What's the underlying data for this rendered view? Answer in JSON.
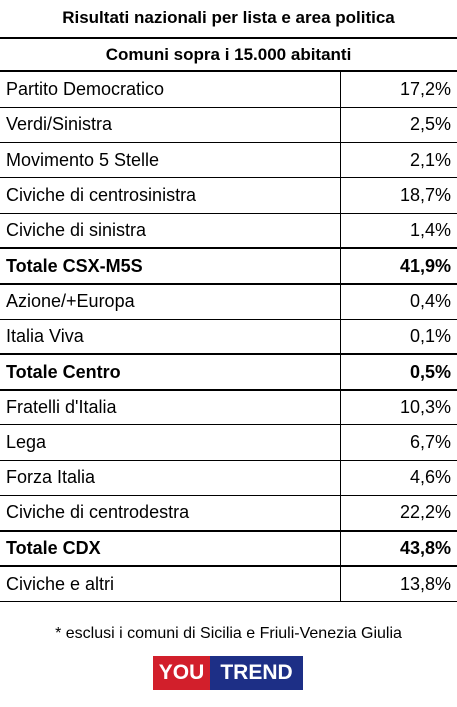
{
  "title": "Risultati nazionali per lista e area politica",
  "subtitle": "Comuni sopra i 15.000 abitanti",
  "chart_data": {
    "type": "table",
    "title": "Risultati nazionali per lista e area politica",
    "subtitle": "Comuni sopra i 15.000 abitanti",
    "rows": [
      {
        "label": "Partito Democratico",
        "value": "17,2%",
        "total": false
      },
      {
        "label": "Verdi/Sinistra",
        "value": "2,5%",
        "total": false
      },
      {
        "label": "Movimento 5 Stelle",
        "value": "2,1%",
        "total": false
      },
      {
        "label": "Civiche di centrosinistra",
        "value": "18,7%",
        "total": false
      },
      {
        "label": "Civiche di sinistra",
        "value": "1,4%",
        "total": false
      },
      {
        "label": "Totale CSX-M5S",
        "value": "41,9%",
        "total": true
      },
      {
        "label": "Azione/+Europa",
        "value": "0,4%",
        "total": false
      },
      {
        "label": "Italia Viva",
        "value": "0,1%",
        "total": false
      },
      {
        "label": "Totale Centro",
        "value": "0,5%",
        "total": true
      },
      {
        "label": "Fratelli d'Italia",
        "value": "10,3%",
        "total": false
      },
      {
        "label": "Lega",
        "value": "6,7%",
        "total": false
      },
      {
        "label": "Forza Italia",
        "value": "4,6%",
        "total": false
      },
      {
        "label": "Civiche di centrodestra",
        "value": "22,2%",
        "total": false
      },
      {
        "label": "Totale CDX",
        "value": "43,8%",
        "total": true
      },
      {
        "label": "Civiche e altri",
        "value": "13,8%",
        "total": false
      }
    ]
  },
  "footnote": "* esclusi i comuni di Sicilia e Friuli-Venezia Giulia",
  "logo": {
    "part1": "You",
    "part2": "Trend",
    "color1": "#d21f2b",
    "color2": "#1d2f86"
  }
}
